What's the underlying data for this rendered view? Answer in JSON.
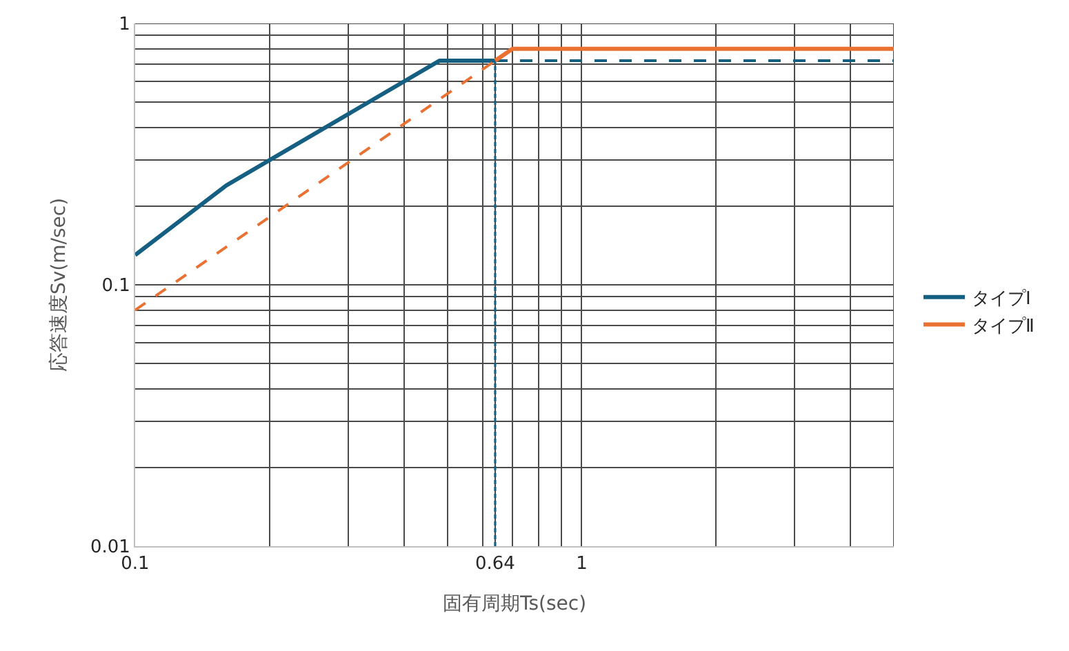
{
  "chart_data": {
    "type": "line",
    "xlabel": "固有周期Ts(sec)",
    "ylabel": "応答速度Sv(m/sec)",
    "log": "xy",
    "grid": true,
    "legend": "right",
    "xlim": [
      0.1,
      5
    ],
    "ylim": [
      0.01,
      1
    ],
    "xticks": [
      0.1,
      {
        "value": 0.2,
        "label": null
      },
      {
        "value": 0.3,
        "label": null
      },
      {
        "value": 0.4,
        "label": null
      },
      {
        "value": 0.5,
        "label": null
      },
      {
        "value": 0.6,
        "label": null
      },
      0.64,
      {
        "value": 0.7,
        "label": null
      },
      {
        "value": 0.8,
        "label": null
      },
      {
        "value": 0.9,
        "label": null
      },
      1,
      {
        "value": 2,
        "label": null
      },
      {
        "value": 3,
        "label": null
      },
      {
        "value": 4,
        "label": null
      },
      {
        "value": 5,
        "label": null
      }
    ],
    "yticks": [
      0.01,
      {
        "value": 0.02,
        "label": null
      },
      {
        "value": 0.03,
        "label": null
      },
      {
        "value": 0.04,
        "label": null
      },
      {
        "value": 0.05,
        "label": null
      },
      {
        "value": 0.06,
        "label": null
      },
      {
        "value": 0.07,
        "label": null
      },
      {
        "value": 0.08,
        "label": null
      },
      {
        "value": 0.09,
        "label": null
      },
      0.1,
      {
        "value": 0.2,
        "label": null
      },
      {
        "value": 0.3,
        "label": null
      },
      {
        "value": 0.4,
        "label": null
      },
      {
        "value": 0.5,
        "label": null
      },
      {
        "value": 0.6,
        "label": null
      },
      {
        "value": 0.7,
        "label": null
      },
      {
        "value": 0.8,
        "label": null
      },
      {
        "value": 0.9,
        "label": null
      },
      1
    ],
    "series": [
      {
        "name": "タイプⅠ",
        "color": "#156082",
        "line_style": "solid",
        "x": [
          0.1,
          0.16,
          0.48,
          0.64
        ],
        "values": [
          0.13,
          0.24,
          0.72,
          0.72
        ]
      },
      {
        "color": "#156082",
        "line_style": "dashed",
        "x": [
          0.64,
          5
        ],
        "values": [
          0.72,
          0.72
        ]
      },
      {
        "color": "#156082",
        "line_style": "dotted",
        "x": [
          0.64,
          0.64
        ],
        "values": [
          0.01,
          0.72
        ]
      },
      {
        "color": "#e97132",
        "line_style": "dashed",
        "x": [
          0.1,
          0.64
        ],
        "values": [
          0.08,
          0.72
        ]
      },
      {
        "name": "タイプⅡ",
        "color": "#e97132",
        "line_style": "solid",
        "x": [
          0.64,
          0.7,
          5
        ],
        "values": [
          0.72,
          0.8,
          0.8
        ]
      }
    ]
  }
}
